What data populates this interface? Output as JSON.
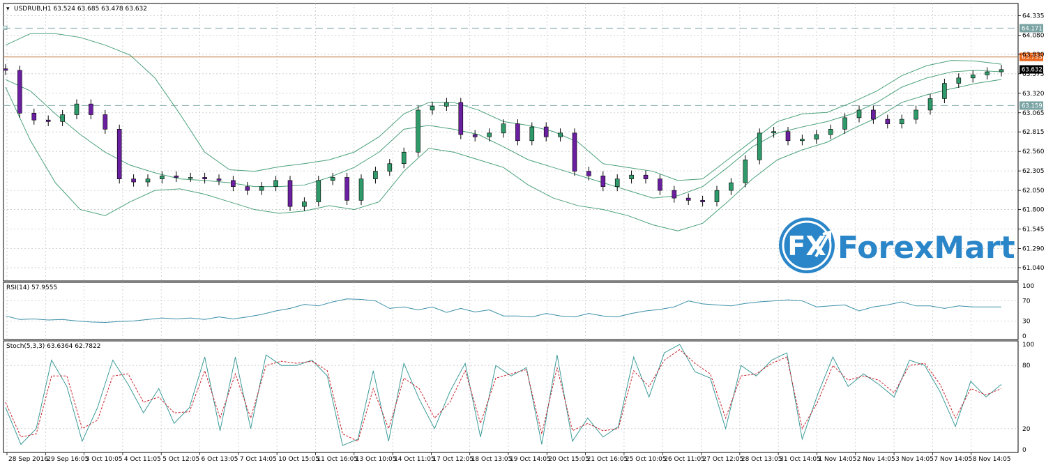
{
  "chart_data": [
    {
      "type": "candlestick",
      "title": "USDRUB,H1  63.524 63.685 63.478 63.632",
      "yticks": [
        61.04,
        61.29,
        61.545,
        61.8,
        62.05,
        62.305,
        62.56,
        62.815,
        63.065,
        63.32,
        63.575,
        63.83,
        64.08,
        64.335
      ],
      "ylim": [
        60.93,
        64.43
      ],
      "grid": true,
      "levels": [
        {
          "label": "64.171",
          "value": 64.171,
          "style": "dashed",
          "color": "#8fb3b3",
          "tag_color": "#7aa3a3"
        },
        {
          "label": "63.795",
          "value": 63.795,
          "style": "solid",
          "color": "#c8864f",
          "tag_color": "#e8661c"
        },
        {
          "label": "63.632",
          "value": 63.632,
          "style": "none",
          "color": "#000000",
          "tag_color": "#000000"
        },
        {
          "label": "63.159",
          "value": 63.159,
          "style": "dashed",
          "color": "#8fb3b3",
          "tag_color": "#7aa3a3"
        }
      ],
      "bollinger": {
        "upper": [
          63.95,
          64.1,
          64.1,
          64.05,
          63.95,
          63.82,
          63.52,
          63.05,
          62.55,
          62.32,
          62.3,
          62.36,
          62.4,
          62.45,
          62.55,
          62.75,
          63.05,
          63.2,
          63.2,
          63.1,
          62.95,
          62.9,
          62.82,
          62.68,
          62.4,
          62.35,
          62.3,
          62.18,
          62.2,
          62.45,
          62.7,
          62.95,
          63.05,
          63.07,
          63.2,
          63.35,
          63.55,
          63.68,
          63.75,
          63.74,
          63.7
        ],
        "middle": [
          63.5,
          63.35,
          63.05,
          62.78,
          62.55,
          62.38,
          62.28,
          62.2,
          62.18,
          62.15,
          62.1,
          62.1,
          62.12,
          62.22,
          62.35,
          62.55,
          62.85,
          62.9,
          62.85,
          62.78,
          62.62,
          62.45,
          62.35,
          62.25,
          62.15,
          62.05,
          61.95,
          61.98,
          62.1,
          62.35,
          62.62,
          62.8,
          62.88,
          62.95,
          63.05,
          63.2,
          63.4,
          63.52,
          63.6,
          63.62,
          63.6
        ],
        "lower": [
          63.4,
          62.7,
          62.15,
          61.8,
          61.72,
          61.9,
          62.05,
          62.07,
          62.0,
          61.9,
          61.8,
          61.75,
          61.78,
          61.85,
          61.8,
          61.9,
          62.3,
          62.6,
          62.55,
          62.45,
          62.35,
          62.12,
          61.95,
          61.85,
          61.8,
          61.72,
          61.6,
          61.52,
          61.62,
          61.9,
          62.2,
          62.45,
          62.58,
          62.68,
          62.85,
          63.0,
          63.2,
          63.3,
          63.38,
          63.45,
          63.5
        ]
      },
      "candles_close": [
        63.62,
        63.06,
        62.97,
        62.95,
        63.04,
        63.18,
        63.04,
        62.85,
        62.2,
        62.16,
        62.2,
        62.24,
        62.22,
        62.22,
        62.2,
        62.18,
        62.1,
        62.05,
        62.1,
        62.18,
        61.84,
        61.9,
        62.18,
        62.22,
        61.92,
        62.2,
        62.3,
        62.4,
        62.55,
        63.1,
        63.15,
        63.2,
        62.78,
        62.75,
        62.8,
        62.92,
        62.7,
        62.88,
        62.75,
        62.8,
        62.3,
        62.24,
        62.1,
        62.2,
        62.25,
        62.2,
        62.05,
        61.95,
        61.92,
        61.9,
        62.05,
        62.15,
        62.45,
        62.8,
        62.82,
        62.7,
        62.72,
        62.78,
        62.85,
        63.0,
        63.1,
        62.98,
        62.92,
        62.98,
        63.1,
        63.25,
        63.45,
        63.52,
        63.56,
        63.6,
        63.63
      ]
    },
    {
      "type": "line",
      "title": "RSI(14) 57.9555",
      "yticks": [
        100,
        70,
        30,
        0
      ],
      "ylim": [
        0,
        100
      ],
      "series": [
        {
          "values": [
            40,
            33,
            34,
            32,
            33,
            30,
            28,
            27,
            29,
            30,
            33,
            36,
            34,
            36,
            33,
            38,
            34,
            38,
            43,
            50,
            55,
            63,
            60,
            68,
            74,
            73,
            70,
            55,
            58,
            52,
            58,
            47,
            55,
            48,
            52,
            40,
            40,
            38,
            45,
            40,
            38,
            45,
            40,
            38,
            45,
            50,
            53,
            58,
            70,
            64,
            62,
            60,
            65,
            68,
            70,
            72,
            70,
            58,
            60,
            62,
            50,
            58,
            62,
            68,
            60,
            60,
            55,
            60,
            58,
            58,
            58
          ]
        }
      ]
    },
    {
      "type": "line",
      "title": "Stoch(5,3,3) 63.6364 62.7822",
      "yticks": [
        100,
        80,
        20,
        0
      ],
      "ylim": [
        0,
        100
      ],
      "series": [
        {
          "values": [
            40,
            5,
            20,
            85,
            60,
            8,
            40,
            85,
            62,
            35,
            58,
            25,
            40,
            88,
            18,
            88,
            20,
            90,
            80,
            80,
            85,
            70,
            4,
            10,
            75,
            8,
            82,
            48,
            20,
            55,
            82,
            12,
            80,
            70,
            78,
            5,
            90,
            8,
            30,
            12,
            22,
            88,
            50,
            92,
            100,
            74,
            68,
            20,
            80,
            70,
            85,
            92,
            10,
            52,
            88,
            60,
            72,
            62,
            50,
            85,
            80,
            55,
            22,
            65,
            50,
            62
          ]
        },
        {
          "values": [
            45,
            12,
            15,
            70,
            70,
            20,
            28,
            70,
            72,
            45,
            50,
            35,
            36,
            75,
            30,
            72,
            30,
            80,
            84,
            82,
            84,
            75,
            15,
            8,
            58,
            20,
            68,
            58,
            30,
            45,
            75,
            25,
            68,
            72,
            76,
            15,
            78,
            18,
            25,
            18,
            20,
            75,
            60,
            85,
            95,
            82,
            72,
            30,
            70,
            72,
            82,
            88,
            20,
            45,
            80,
            66,
            70,
            66,
            54,
            80,
            82,
            62,
            30,
            58,
            52,
            58
          ]
        }
      ]
    }
  ],
  "xaxis": {
    "ticks": [
      "28 Sep 2016",
      "29 Sep 16:05",
      "3 Oct 10:05",
      "4 Oct 11:05",
      "5 Oct 12:05",
      "6 Oct 13:05",
      "7 Oct 14:05",
      "10 Oct 15:05",
      "11 Oct 16:05",
      "13 Oct 10:05",
      "14 Oct 11:05",
      "17 Oct 12:05",
      "18 Oct 13:05",
      "19 Oct 14:05",
      "20 Oct 15:05",
      "21 Oct 16:05",
      "25 Oct 10:05",
      "26 Oct 11:05",
      "27 Oct 12:05",
      "28 Oct 13:05",
      "31 Oct 14:05",
      "1 Nov 14:05",
      "2 Nov 14:05",
      "3 Nov 14:05",
      "7 Nov 14:05",
      "8 Nov 14:05"
    ]
  },
  "logo": {
    "mark": "FX",
    "text": "ForexMart",
    "color": "#2a86c8"
  }
}
